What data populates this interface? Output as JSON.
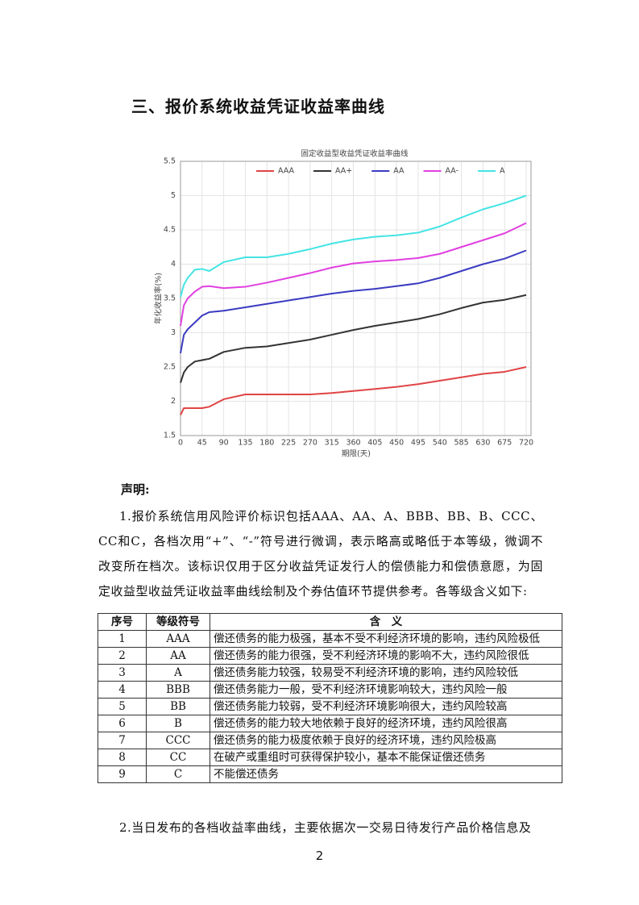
{
  "heading": "三、报价系统收益凭证收益率曲线",
  "chart_data": {
    "type": "line",
    "title": "固定收益型收益凭证收益率曲线",
    "x_label": "期限(天)",
    "y_label": "年化收益率(%)",
    "x": [
      0,
      7,
      15,
      30,
      45,
      60,
      90,
      135,
      180,
      225,
      270,
      315,
      360,
      405,
      450,
      495,
      540,
      585,
      630,
      675,
      720
    ],
    "series": [
      {
        "name": "AAA",
        "color": "#e04444",
        "values": [
          1.8,
          1.9,
          1.9,
          1.9,
          1.9,
          1.92,
          2.03,
          2.1,
          2.1,
          2.1,
          2.1,
          2.12,
          2.15,
          2.18,
          2.21,
          2.25,
          2.3,
          2.35,
          2.4,
          2.43,
          2.5
        ]
      },
      {
        "name": "AA+",
        "color": "#333333",
        "values": [
          2.27,
          2.42,
          2.5,
          2.58,
          2.6,
          2.62,
          2.72,
          2.78,
          2.8,
          2.85,
          2.9,
          2.97,
          3.04,
          3.1,
          3.15,
          3.2,
          3.27,
          3.36,
          3.44,
          3.48,
          3.55
        ]
      },
      {
        "name": "AA",
        "color": "#3b3bc2",
        "values": [
          2.7,
          2.97,
          3.05,
          3.15,
          3.25,
          3.3,
          3.32,
          3.37,
          3.42,
          3.47,
          3.52,
          3.57,
          3.61,
          3.64,
          3.68,
          3.72,
          3.8,
          3.9,
          4.0,
          4.08,
          4.2
        ]
      },
      {
        "name": "AA-",
        "color": "#e040e0",
        "values": [
          3.1,
          3.4,
          3.5,
          3.6,
          3.67,
          3.68,
          3.65,
          3.67,
          3.73,
          3.8,
          3.87,
          3.95,
          4.01,
          4.04,
          4.06,
          4.09,
          4.15,
          4.25,
          4.35,
          4.45,
          4.6
        ]
      },
      {
        "name": "A",
        "color": "#44e4e4",
        "values": [
          3.52,
          3.7,
          3.8,
          3.92,
          3.93,
          3.9,
          4.03,
          4.1,
          4.1,
          4.15,
          4.22,
          4.3,
          4.36,
          4.4,
          4.42,
          4.46,
          4.55,
          4.68,
          4.8,
          4.89,
          5.0
        ]
      }
    ],
    "xlim": [
      0,
      730
    ],
    "xticks": [
      0,
      45,
      90,
      135,
      180,
      225,
      270,
      315,
      360,
      405,
      450,
      495,
      540,
      585,
      630,
      675,
      720
    ],
    "ylim": [
      1.5,
      5.5
    ],
    "yticks": [
      1.5,
      2,
      2.5,
      3,
      3.5,
      4,
      4.5,
      5,
      5.5
    ],
    "grid": true,
    "legend": "top"
  },
  "statement": {
    "title": "声明:",
    "paragraphs": [
      "1.报价系统信用风险评价标识包括AAA、AA、A、BBB、BB、B、CCC、CC和C，各档次用“+”、“-”符号进行微调，表示略高或略低于本等级，微调不改变所在档次。该标识仅用于区分收益凭证发行人的偿债能力和偿债意愿，为固定收益型收益凭证收益率曲线绘制及个券估值环节提供参考。各等级含义如下:",
      "2.当日发布的各档收益率曲线，主要依据次一交易日待发行产品价格信息及"
    ]
  },
  "table": {
    "header": [
      "序号",
      "等级符号",
      "含　义"
    ],
    "rows": [
      [
        "1",
        "AAA",
        "偿还债务的能力极强，基本不受不利经济环境的影响，违约风险极低"
      ],
      [
        "2",
        "AA",
        "偿还债务的能力很强，受不利经济环境的影响不大，违约风险很低"
      ],
      [
        "3",
        "A",
        "偿还债务能力较强，较易受不利经济环境的影响，违约风险较低"
      ],
      [
        "4",
        "BBB",
        "偿还债务能力一般，受不利经济环境影响较大，违约风险一般"
      ],
      [
        "5",
        "BB",
        "偿还债务能力较弱，受不利经济环境影响很大，违约风险较高"
      ],
      [
        "6",
        "B",
        "偿还债务的能力较大地依赖于良好的经济环境，违约风险很高"
      ],
      [
        "7",
        "CCC",
        "偿还债务的能力极度依赖于良好的经济环境，违约风险极高"
      ],
      [
        "8",
        "CC",
        "在破产或重组时可获得保护较小，基本不能保证偿还债务"
      ],
      [
        "9",
        "C",
        "不能偿还债务"
      ]
    ]
  },
  "page_number": "2"
}
